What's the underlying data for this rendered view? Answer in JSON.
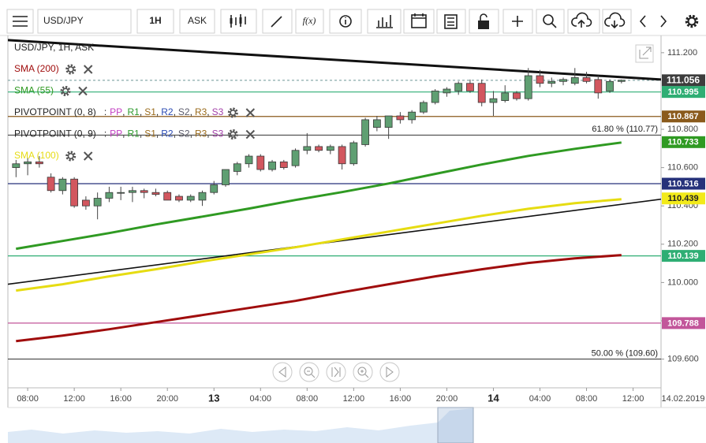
{
  "toolbar": {
    "symbol": "USD/JPY",
    "timeframe": "1H",
    "price_type": "ASK",
    "function_label": "f(x)"
  },
  "chart_data": {
    "type": "candlestick",
    "title": "USD/JPY, 1H, ASK",
    "x": [
      7,
      8,
      9,
      10,
      11,
      12,
      13,
      14,
      15,
      16,
      17,
      18,
      19,
      20,
      21,
      22,
      23,
      24,
      25,
      26,
      27,
      28,
      29,
      30,
      31,
      32,
      33,
      34,
      35,
      36,
      37,
      38,
      39,
      40,
      41,
      42,
      43,
      44,
      45,
      46,
      47,
      48,
      49,
      50,
      51,
      52,
      53,
      54,
      55,
      56,
      57,
      58,
      59
    ],
    "open": [
      110.6,
      110.62,
      110.63,
      110.55,
      110.48,
      110.54,
      110.43,
      110.4,
      110.44,
      110.47,
      110.47,
      110.48,
      110.47,
      110.47,
      110.45,
      110.43,
      110.43,
      110.47,
      110.51,
      110.58,
      110.62,
      110.66,
      110.59,
      110.63,
      110.61,
      110.69,
      110.71,
      110.69,
      110.71,
      110.62,
      110.72,
      110.81,
      110.81,
      110.87,
      110.85,
      110.89,
      110.94,
      110.99,
      111.0,
      111.04,
      111.04,
      110.94,
      110.95,
      110.99,
      110.96,
      111.08,
      111.04,
      111.05,
      111.04,
      111.07,
      111.06,
      111.0,
      111.05
    ],
    "high": [
      110.64,
      110.65,
      110.66,
      110.57,
      110.55,
      110.55,
      110.45,
      110.47,
      110.5,
      110.5,
      110.5,
      110.49,
      110.49,
      110.48,
      110.46,
      110.46,
      110.48,
      110.53,
      110.59,
      110.63,
      110.67,
      110.67,
      110.64,
      110.64,
      110.7,
      110.78,
      110.72,
      110.72,
      110.72,
      110.74,
      110.86,
      110.87,
      110.87,
      110.89,
      110.9,
      110.95,
      111.01,
      111.02,
      111.05,
      111.06,
      111.06,
      111.0,
      111.03,
      111.0,
      111.12,
      111.11,
      111.07,
      111.07,
      111.12,
      111.1,
      111.08,
      111.06,
      111.06
    ],
    "low": [
      110.55,
      110.56,
      110.6,
      110.47,
      110.46,
      110.39,
      110.38,
      110.33,
      110.42,
      110.43,
      110.42,
      110.44,
      110.45,
      110.43,
      110.42,
      110.42,
      110.4,
      110.46,
      110.5,
      110.56,
      110.6,
      110.58,
      110.58,
      110.59,
      110.6,
      110.67,
      110.68,
      110.67,
      110.59,
      110.61,
      110.71,
      110.79,
      110.75,
      110.83,
      110.83,
      110.88,
      110.93,
      110.97,
      110.98,
      110.99,
      110.92,
      110.87,
      110.94,
      110.95,
      110.95,
      111.02,
      111.02,
      111.03,
      111.03,
      111.04,
      110.96,
      110.99,
      111.04
    ],
    "close": [
      110.62,
      110.63,
      110.62,
      110.48,
      110.54,
      110.4,
      110.4,
      110.44,
      110.47,
      110.47,
      110.48,
      110.47,
      110.46,
      110.43,
      110.43,
      110.45,
      110.47,
      110.51,
      110.59,
      110.62,
      110.66,
      110.59,
      110.63,
      110.6,
      110.69,
      110.71,
      110.69,
      110.71,
      110.62,
      110.73,
      110.85,
      110.85,
      110.87,
      110.85,
      110.89,
      110.94,
      111.0,
      111.01,
      111.04,
      111.0,
      110.94,
      110.96,
      110.99,
      110.96,
      111.08,
      111.04,
      111.05,
      111.06,
      111.07,
      111.05,
      110.99,
      111.05,
      111.056
    ],
    "up_color": "#5f9f72",
    "down_color": "#d2575f",
    "series": [
      {
        "name": "SMA (200)",
        "color": "#a00d0d",
        "x": [
          7,
          11,
          15,
          19,
          23,
          27,
          31,
          35,
          39,
          43,
          47,
          51,
          55,
          59
        ],
        "values": [
          109.694,
          109.723,
          109.756,
          109.793,
          109.83,
          109.867,
          109.904,
          109.949,
          109.991,
          110.032,
          110.069,
          110.102,
          110.126,
          110.143
        ]
      },
      {
        "name": "SMA (55)",
        "color": "#2f9a22",
        "x": [
          7,
          11,
          15,
          19,
          23,
          27,
          31,
          35,
          39,
          43,
          47,
          51,
          55,
          59
        ],
        "values": [
          110.176,
          110.217,
          110.258,
          110.303,
          110.344,
          110.386,
          110.431,
          110.472,
          110.517,
          110.567,
          110.616,
          110.661,
          110.698,
          110.731
        ]
      },
      {
        "name": "SMA (100)",
        "color": "#e6dc12",
        "x": [
          7,
          11,
          15,
          19,
          23,
          27,
          31,
          35,
          39,
          43,
          47,
          51,
          55,
          59
        ],
        "values": [
          109.958,
          109.991,
          110.032,
          110.069,
          110.11,
          110.147,
          110.184,
          110.225,
          110.266,
          110.307,
          110.348,
          110.385,
          110.414,
          110.435
        ]
      }
    ],
    "pivot_indicators": [
      {
        "name": "PIVOTPOINT (0, 8)",
        "prefix": ":",
        "separator": ",",
        "levels": [
          {
            "name": "PP",
            "color": "#c23fc2"
          },
          {
            "name": "R1",
            "color": "#2e9a2e"
          },
          {
            "name": "S1",
            "color": "#9a6b1c"
          },
          {
            "name": "R2",
            "color": "#2b4bb3"
          },
          {
            "name": "S2",
            "color": "#5a5a6a"
          },
          {
            "name": "R3",
            "color": "#9a6b1c"
          },
          {
            "name": "S3",
            "color": "#a23fa8"
          }
        ]
      },
      {
        "name": "PIVOTPOINT (0, 9)",
        "prefix": ":",
        "separator": ",",
        "levels": [
          {
            "name": "PP",
            "color": "#c23fc2"
          },
          {
            "name": "R1",
            "color": "#2e9a2e"
          },
          {
            "name": "S1",
            "color": "#9a6b1c"
          },
          {
            "name": "R2",
            "color": "#2b4bb3"
          },
          {
            "name": "S2",
            "color": "#5a5a6a"
          },
          {
            "name": "R3",
            "color": "#9a6b1c"
          },
          {
            "name": "S3",
            "color": "#a23fa8"
          }
        ]
      }
    ],
    "trendlines": [
      {
        "x": [
          6.3,
          62.4
        ],
        "values": [
          111.266,
          111.06
        ],
        "weight": "bold"
      },
      {
        "x": [
          6.3,
          62.4
        ],
        "values": [
          109.991,
          110.435
        ],
        "weight": "normal"
      }
    ],
    "price_lines": [
      {
        "value": 111.056,
        "color": "#3d3d3d",
        "text_color": "#ffffff",
        "line": "dashed"
      },
      {
        "value": 110.995,
        "color": "#2fae74",
        "text_color": "#ffffff",
        "line": "solid"
      },
      {
        "value": 110.867,
        "color": "#8a5a1c",
        "text_color": "#ffffff",
        "line": "solid"
      },
      {
        "value": 110.733,
        "color": "#2f9a22",
        "text_color": "#ffffff",
        "line": "none"
      },
      {
        "value": 110.516,
        "color": "#26327a",
        "text_color": "#ffffff",
        "line": "solid"
      },
      {
        "value": 110.439,
        "color": "#f2ea1a",
        "text_color": "#222222",
        "line": "none"
      },
      {
        "value": 110.139,
        "color": "#2fae74",
        "text_color": "#ffffff",
        "line": "solid"
      },
      {
        "value": 109.788,
        "color": "#c2569a",
        "text_color": "#ffffff",
        "line": "solid"
      }
    ],
    "fib_levels": [
      {
        "value": 110.77,
        "label": "61.80 % (110.77)"
      },
      {
        "value": 109.6,
        "label": "50.00 % (109.60)"
      }
    ],
    "xlim": [
      6.3,
      62.4
    ],
    "xticks": [
      {
        "value": 8,
        "label": "08:00"
      },
      {
        "value": 12,
        "label": "12:00"
      },
      {
        "value": 16,
        "label": "16:00"
      },
      {
        "value": 20,
        "label": "20:00"
      },
      {
        "value": 24,
        "label": "13"
      },
      {
        "value": 28,
        "label": "04:00"
      },
      {
        "value": 32,
        "label": "08:00"
      },
      {
        "value": 36,
        "label": "12:00"
      },
      {
        "value": 40,
        "label": "16:00"
      },
      {
        "value": 44,
        "label": "20:00"
      },
      {
        "value": 48,
        "label": "14"
      },
      {
        "value": 52,
        "label": "04:00"
      },
      {
        "value": 56,
        "label": "08:00"
      },
      {
        "value": 60,
        "label": "12:00"
      }
    ],
    "cursor_date": "14.02.2019",
    "ylim": [
      109.45,
      111.29
    ],
    "yticks": [
      {
        "value": 109.6,
        "label": "109.600"
      },
      {
        "value": 109.8,
        "label": "109.800"
      },
      {
        "value": 110,
        "label": "110.000"
      },
      {
        "value": 110.2,
        "label": "110.200"
      },
      {
        "value": 110.4,
        "label": "110.400"
      },
      {
        "value": 110.6,
        "label": "110.600"
      },
      {
        "value": 110.8,
        "label": "110.800"
      },
      {
        "value": 111.2,
        "label": "111.200"
      }
    ],
    "grid": false
  }
}
